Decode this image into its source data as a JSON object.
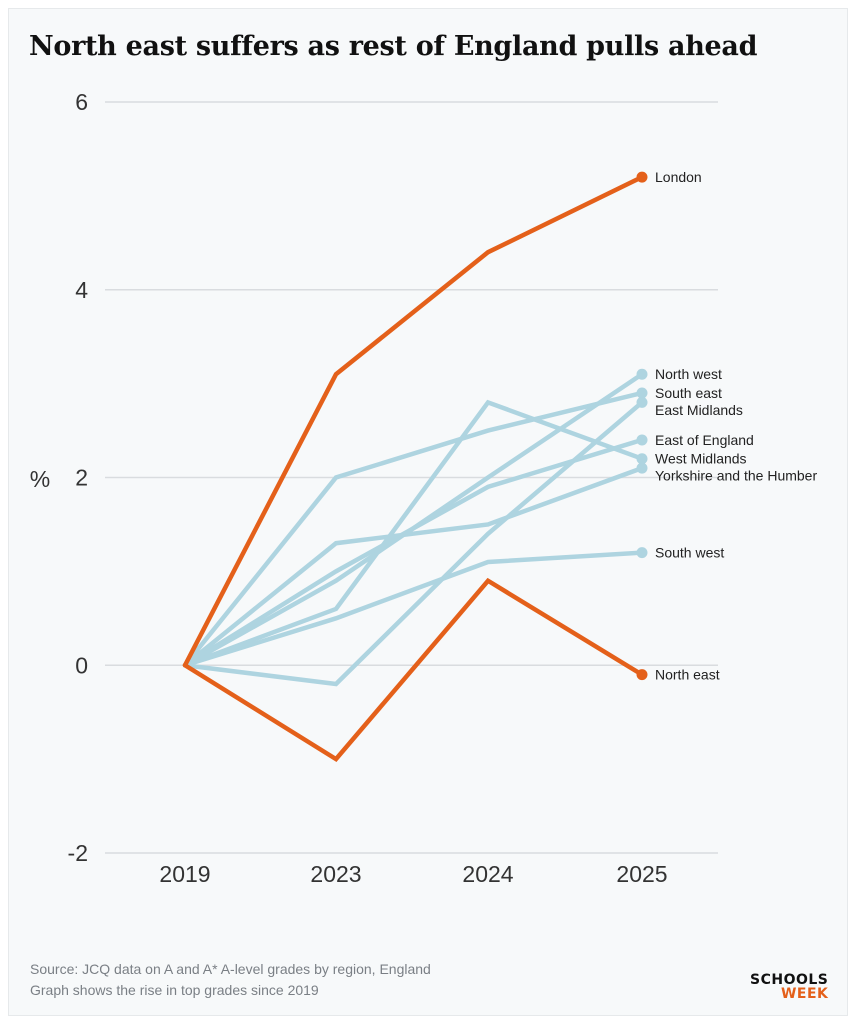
{
  "title": "North east suffers as rest of England pulls ahead",
  "source": {
    "line1": "Source: JCQ data on A and A* A-level grades by region, England",
    "line2": "Graph shows the rise in top grades since 2019"
  },
  "logo": {
    "line1": "SCHOOLS",
    "line2": "WEEK"
  },
  "colors": {
    "highlight": "#e4601a",
    "muted": "#aed4e0",
    "grid": "#d9dcdf",
    "background": "#f7f9fa"
  },
  "chart_data": {
    "type": "line",
    "title": "North east suffers as rest of England pulls ahead",
    "xlabel": "",
    "ylabel": "%",
    "categories": [
      "2019",
      "2023",
      "2024",
      "2025"
    ],
    "ylim": [
      -2,
      6
    ],
    "yticks": [
      -2,
      0,
      2,
      4,
      6
    ],
    "grid": true,
    "series": [
      {
        "name": "North west",
        "values": [
          0,
          0.9,
          2.0,
          3.1
        ],
        "highlight": false
      },
      {
        "name": "South east",
        "values": [
          0,
          2.0,
          2.5,
          2.9
        ],
        "highlight": false
      },
      {
        "name": "East Midlands",
        "values": [
          0,
          -0.2,
          1.4,
          2.8
        ],
        "highlight": false
      },
      {
        "name": "East of England",
        "values": [
          0,
          1.0,
          1.9,
          2.4
        ],
        "highlight": false
      },
      {
        "name": "West Midlands",
        "values": [
          0,
          0.6,
          2.8,
          2.2
        ],
        "highlight": false
      },
      {
        "name": "Yorkshire and the Humber",
        "values": [
          0,
          1.3,
          1.5,
          2.1
        ],
        "highlight": false
      },
      {
        "name": "South west",
        "values": [
          0,
          0.5,
          1.1,
          1.2
        ],
        "highlight": false
      },
      {
        "name": "London",
        "values": [
          0,
          3.1,
          4.4,
          5.2
        ],
        "highlight": true
      },
      {
        "name": "North east",
        "values": [
          0,
          -1.0,
          0.9,
          -0.1
        ],
        "highlight": true
      }
    ]
  }
}
